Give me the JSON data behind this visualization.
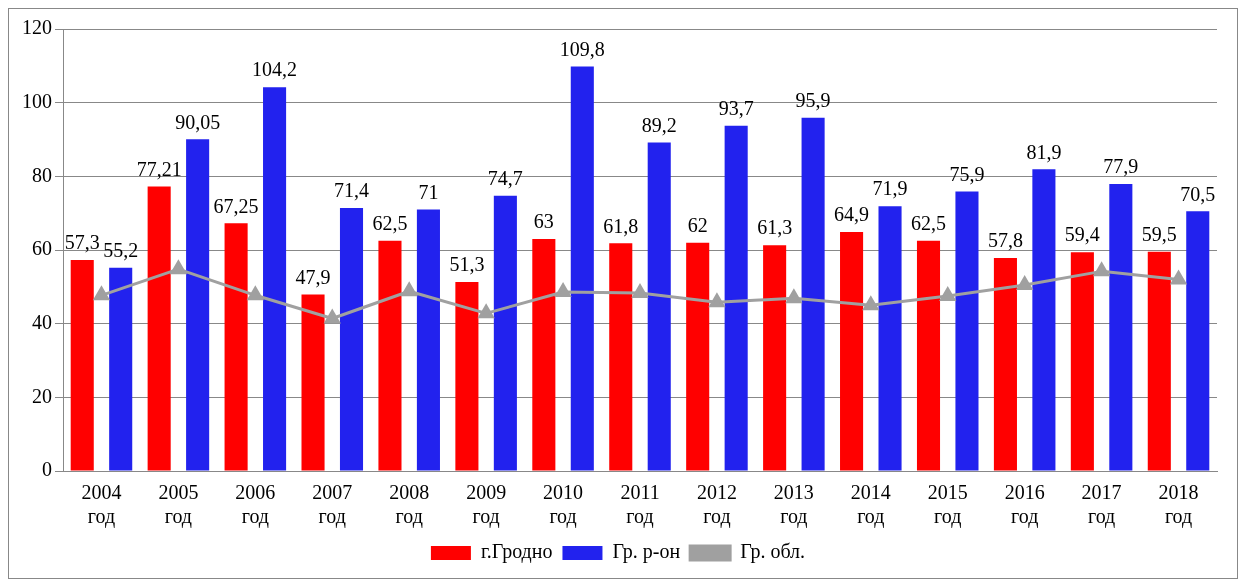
{
  "chart_data": {
    "type": "bar",
    "categories": [
      "2004 год",
      "2005 год",
      "2006 год",
      "2007 год",
      "2008 год",
      "2009 год",
      "2010 год",
      "2011 год",
      "2012 год",
      "2013 год",
      "2014 год",
      "2015 год",
      "2016 год",
      "2017 год",
      "2018 год"
    ],
    "series": [
      {
        "name": "г.Гродно",
        "color": "#ff0000",
        "values": [
          57.3,
          77.21,
          67.25,
          47.9,
          62.5,
          51.3,
          63,
          61.8,
          62,
          61.3,
          64.9,
          62.5,
          57.8,
          59.4,
          59.5
        ],
        "value_labels": [
          "57,3",
          "77,21",
          "67,25",
          "47,9",
          "62,5",
          "51,3",
          "63",
          "61,8",
          "62",
          "61,3",
          "64,9",
          "62,5",
          "57,8",
          "59,4",
          "59,5"
        ]
      },
      {
        "name": "Гр. р-он",
        "color": "#2222ee",
        "values": [
          55.2,
          90.05,
          104.2,
          71.4,
          71,
          74.7,
          109.8,
          89.2,
          93.7,
          95.9,
          71.9,
          75.9,
          81.9,
          77.9,
          70.5
        ],
        "value_labels": [
          "55,2",
          "90,05",
          "104,2",
          "71,4",
          "71",
          "74,7",
          "109,8",
          "89,2",
          "93,7",
          "95,9",
          "71,9",
          "75,9",
          "81,9",
          "77,9",
          "70,5"
        ]
      },
      {
        "name": "Гр. обл.",
        "type": "line",
        "color": "#a0a0a0",
        "marker": "triangle",
        "values": [
          47.7,
          54.8,
          47.7,
          41.4,
          48.8,
          42.8,
          48.6,
          48.3,
          45.8,
          46.9,
          45,
          47.5,
          50.5,
          54.2,
          52
        ]
      }
    ],
    "ylim": [
      0,
      120
    ],
    "yticks": [
      0,
      20,
      40,
      60,
      80,
      100,
      120
    ],
    "grid": "y",
    "legend": "bottom"
  }
}
